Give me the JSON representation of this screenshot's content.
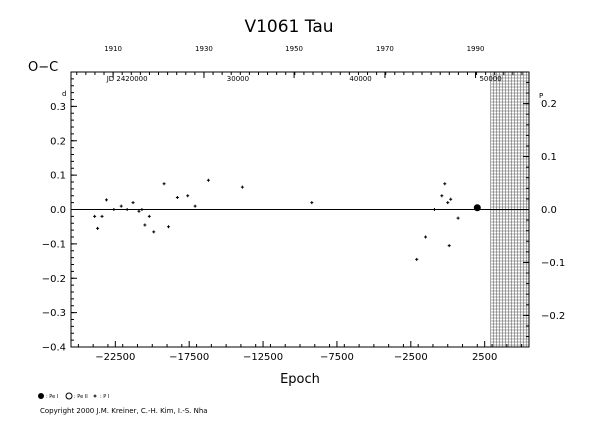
{
  "chart_data": {
    "type": "scatter",
    "title": "V1061  Tau",
    "xlabel": "Epoch",
    "ylabel": "O−C",
    "y_unit_left": "d",
    "y_unit_right": "P",
    "xlim": [
      -25500,
      5500
    ],
    "ylim": [
      -0.4,
      0.4
    ],
    "x_ticks": [
      -22500,
      -17500,
      -12500,
      -7500,
      -2500,
      2500
    ],
    "x_tick_labels": [
      "−22500",
      "−17500",
      "−12500",
      "−7500",
      "−2500",
      "2500"
    ],
    "y_ticks": [
      -0.4,
      -0.3,
      -0.2,
      -0.1,
      0.0,
      0.1,
      0.2,
      0.3
    ],
    "y_tick_labels": [
      "−0.4",
      "−0.3",
      "−0.2",
      "−0.1",
      "0.0",
      "0.1",
      "0.2",
      "0.3"
    ],
    "y2_ticks": [
      -0.2,
      -0.1,
      0.0,
      0.1,
      0.2
    ],
    "y2_tick_labels": [
      "−0.2",
      "−0.1",
      "0.0",
      "0.1",
      "0.2"
    ],
    "y2_period_ratio": 1.54,
    "year_axis": {
      "labels": [
        "1910",
        "1930",
        "1950",
        "1970",
        "1990"
      ],
      "epochs": [
        -22650,
        -16500,
        -10400,
        -4250,
        1880
      ]
    },
    "jd_axis": {
      "labels": [
        "JD 2420000",
        "30000",
        "40000",
        "50000"
      ],
      "epochs": [
        -21700,
        -14200,
        -5900,
        2900
      ]
    },
    "hatch_region": {
      "x_from": 2900,
      "x_to": 5500
    },
    "grid": false,
    "legend": [
      {
        "marker": "filled-circle",
        "label": ": Pe I"
      },
      {
        "marker": "open-circle",
        "label": ": Pe II"
      },
      {
        "marker": "plus",
        "label": ": P I"
      }
    ],
    "series": [
      {
        "marker": "plus",
        "points": [
          [
            -23900,
            -0.02
          ],
          [
            -23700,
            -0.055
          ],
          [
            -23400,
            -0.02
          ],
          [
            -23100,
            0.028
          ],
          [
            -22600,
            0.0
          ],
          [
            -22100,
            0.01
          ],
          [
            -21700,
            0.0
          ],
          [
            -21300,
            0.02
          ],
          [
            -20900,
            -0.005
          ],
          [
            -20700,
            0.0
          ],
          [
            -20500,
            -0.045
          ],
          [
            -20200,
            -0.02
          ],
          [
            -19900,
            -0.065
          ],
          [
            -19200,
            0.075
          ],
          [
            -18900,
            -0.05
          ],
          [
            -18300,
            0.035
          ],
          [
            -17600,
            0.04
          ],
          [
            -17100,
            0.01
          ],
          [
            -16200,
            0.085
          ],
          [
            -13900,
            0.065
          ],
          [
            -9200,
            0.02
          ],
          [
            -2100,
            -0.145
          ],
          [
            -1500,
            -0.08
          ],
          [
            -900,
            0.0
          ],
          [
            -400,
            0.04
          ],
          [
            -200,
            0.075
          ],
          [
            100,
            -0.105
          ],
          [
            0,
            0.02
          ],
          [
            200,
            0.03
          ],
          [
            700,
            -0.025
          ]
        ]
      },
      {
        "marker": "filled-circle",
        "points": [
          [
            2000,
            0.005
          ]
        ]
      }
    ]
  },
  "footer": {
    "copyright": "Copyright 2000 J.M. Kreiner, C.-H. Kim, I.-S. Nha"
  }
}
